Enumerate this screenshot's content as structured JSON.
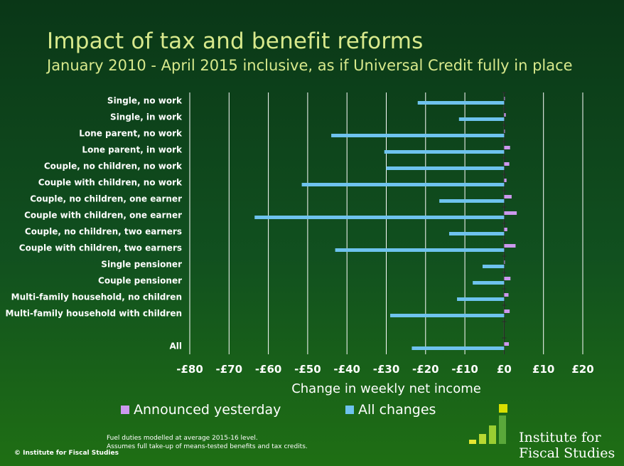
{
  "chart_data": {
    "type": "bar",
    "orientation": "horizontal",
    "title": "Impact of tax and benefit reforms",
    "subtitle": "January 2010 - April 2015 inclusive, as if Universal Credit fully in place",
    "xlabel": "Change in weekly net income",
    "ylabel": "",
    "xlim": [
      -80,
      20
    ],
    "x_ticks": [
      -80,
      -70,
      -60,
      -50,
      -40,
      -30,
      -20,
      -10,
      0,
      10,
      20
    ],
    "x_tick_labels": [
      "-£80",
      "-£70",
      "-£60",
      "-£50",
      "-£40",
      "-£30",
      "-£20",
      "-£10",
      "£0",
      "£10",
      "£20"
    ],
    "grid": true,
    "legend_position": "bottom",
    "categories": [
      "Single, no work",
      "Single, in work",
      "Lone parent, no work",
      "Lone parent, in work",
      "Couple, no children, no work",
      "Couple with children, no work",
      "Couple, no children, one earner",
      "Couple with children, one earner",
      "Couple, no children, two earners",
      "Couple with children, two earners",
      "Single pensioner",
      "Couple pensioner",
      "Multi-family household, no children",
      "Multi-family household with children",
      "",
      "All"
    ],
    "series": [
      {
        "name": "Announced yesterday",
        "color": "#cc99ee",
        "values": [
          0.1,
          0.4,
          0.1,
          1.5,
          1.3,
          0.6,
          1.9,
          3.2,
          0.8,
          2.9,
          0.1,
          1.6,
          1.1,
          1.4,
          null,
          1.2
        ]
      },
      {
        "name": "All changes",
        "color": "#6ec3ee",
        "values": [
          -22,
          -11.5,
          -44,
          -30.5,
          -30,
          -51.5,
          -16.5,
          -63.5,
          -14,
          -43,
          -5.5,
          -8,
          -12,
          -29,
          null,
          -23.5
        ]
      }
    ]
  },
  "notes": [
    "Fuel duties modelled at average 2015-16 level.",
    "Assumes full take-up of means-tested benefits and tax credits."
  ],
  "copyright": "© Institute for Fiscal Studies",
  "organization": {
    "line1": "Institute for",
    "line2": "Fiscal Studies",
    "logo_colors": [
      "#e6e632",
      "#b8d832",
      "#9acd32",
      "#5aa83a",
      "#d8e000"
    ]
  }
}
